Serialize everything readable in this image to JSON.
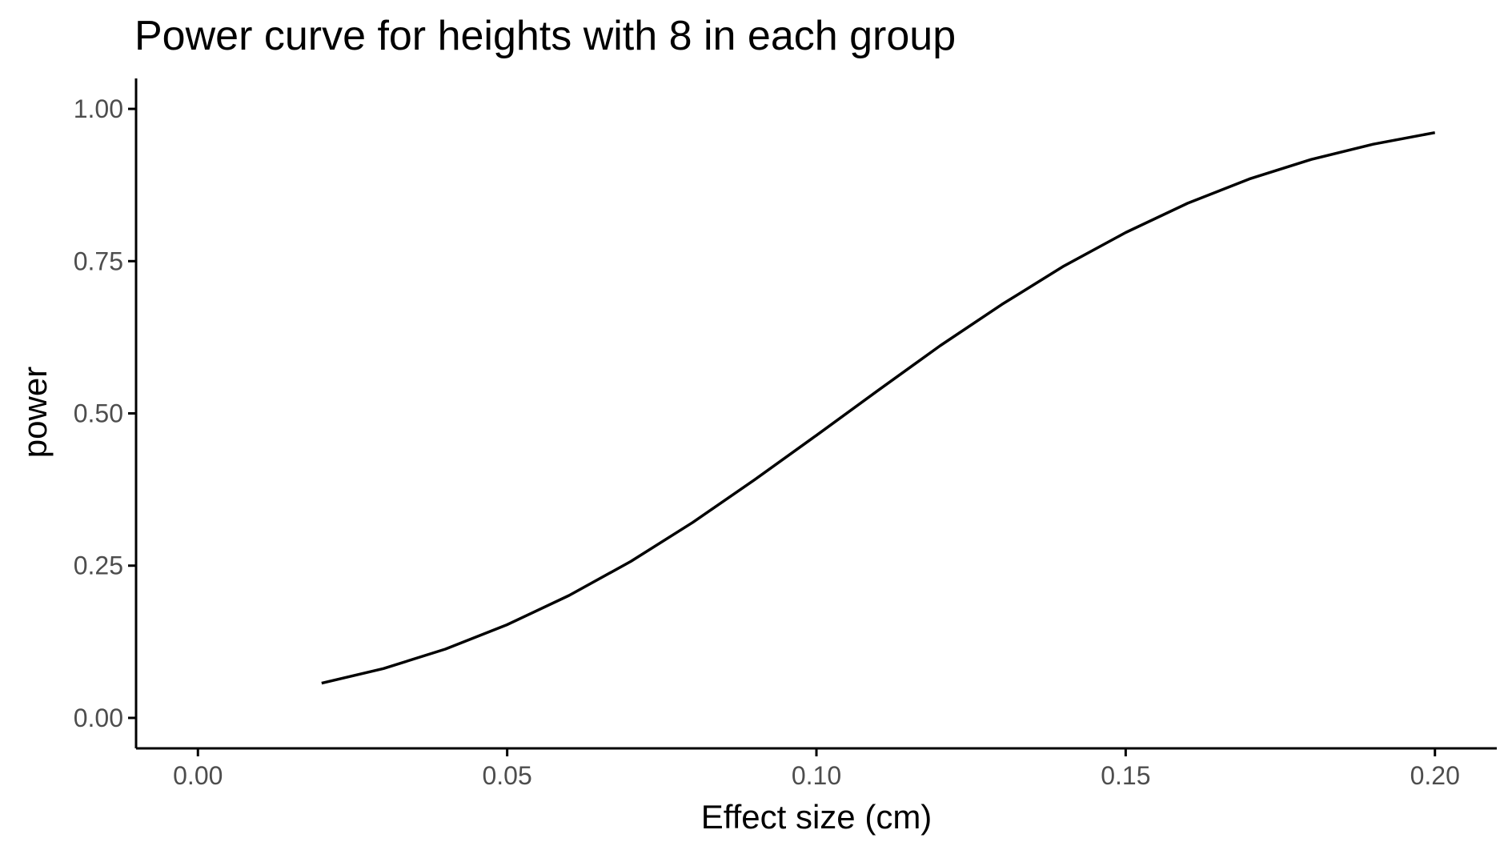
{
  "chart_data": {
    "type": "line",
    "title": "Power curve for heights with 8 in each group",
    "xlabel": "Effect size (cm)",
    "ylabel": "power",
    "xlim": [
      -0.01,
      0.21
    ],
    "ylim": [
      -0.05,
      1.05
    ],
    "x_ticks": [
      0.0,
      0.05,
      0.1,
      0.15,
      0.2
    ],
    "x_tick_labels": [
      "0.00",
      "0.05",
      "0.10",
      "0.15",
      "0.20"
    ],
    "y_ticks": [
      0.0,
      0.25,
      0.5,
      0.75,
      1.0
    ],
    "y_tick_labels": [
      "0.00",
      "0.25",
      "0.50",
      "0.75",
      "1.00"
    ],
    "grid": false,
    "line_color": "#000000",
    "series": [
      {
        "x": [
          0.02,
          0.03,
          0.04,
          0.05,
          0.06,
          0.07,
          0.08,
          0.09,
          0.1,
          0.11,
          0.12,
          0.13,
          0.14,
          0.15,
          0.16,
          0.17,
          0.18,
          0.19,
          0.2
        ],
        "values": [
          0.057,
          0.081,
          0.113,
          0.153,
          0.201,
          0.257,
          0.321,
          0.391,
          0.464,
          0.538,
          0.611,
          0.679,
          0.742,
          0.797,
          0.845,
          0.885,
          0.917,
          0.942,
          0.961
        ]
      }
    ]
  }
}
